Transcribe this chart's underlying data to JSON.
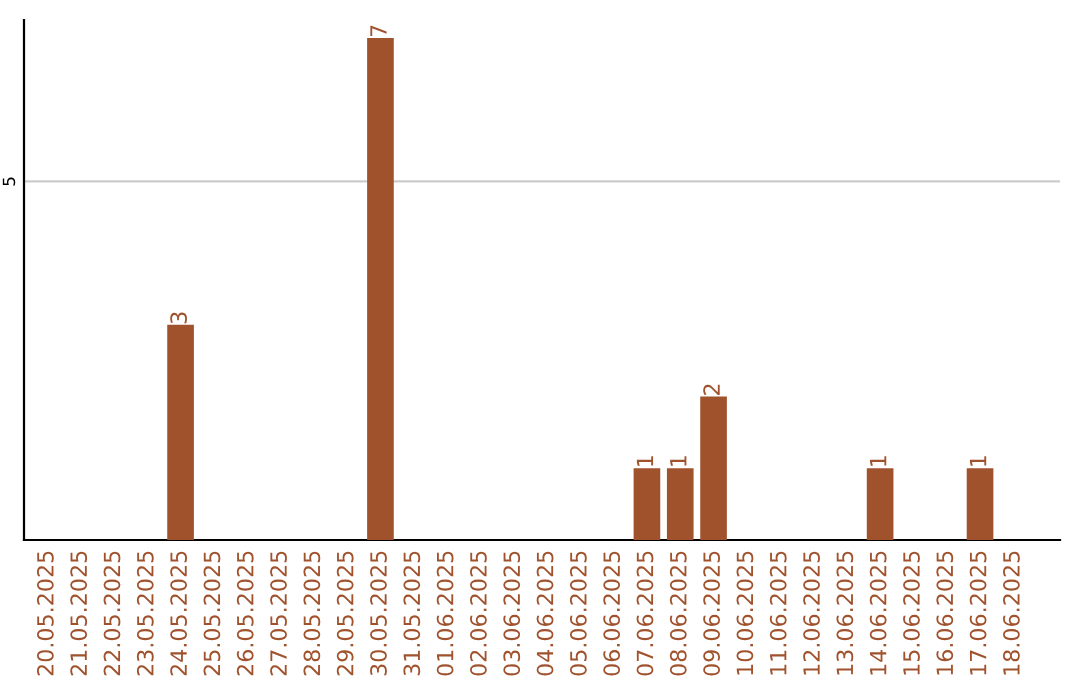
{
  "chart_data": {
    "type": "bar",
    "categories": [
      "20.05.2025",
      "21.05.2025",
      "22.05.2025",
      "23.05.2025",
      "24.05.2025",
      "25.05.2025",
      "26.05.2025",
      "27.05.2025",
      "28.05.2025",
      "29.05.2025",
      "30.05.2025",
      "31.05.2025",
      "01.06.2025",
      "02.06.2025",
      "03.06.2025",
      "04.06.2025",
      "05.06.2025",
      "06.06.2025",
      "07.06.2025",
      "08.06.2025",
      "09.06.2025",
      "10.06.2025",
      "11.06.2025",
      "12.06.2025",
      "13.06.2025",
      "14.06.2025",
      "15.06.2025",
      "16.06.2025",
      "17.06.2025",
      "18.06.2025"
    ],
    "values": [
      0,
      0,
      0,
      0,
      3,
      0,
      0,
      0,
      0,
      0,
      7,
      0,
      0,
      0,
      0,
      0,
      0,
      0,
      1,
      1,
      2,
      0,
      0,
      0,
      0,
      1,
      0,
      0,
      1,
      0
    ],
    "color": "#a0522d",
    "value_labels": [
      null,
      null,
      null,
      null,
      "3",
      null,
      null,
      null,
      null,
      null,
      "7",
      null,
      null,
      null,
      null,
      null,
      null,
      null,
      "1",
      "1",
      "2",
      null,
      null,
      null,
      null,
      "1",
      null,
      null,
      "1",
      null
    ],
    "ylim": [
      0,
      7.25
    ],
    "yticks": [
      5
    ],
    "grid": "y"
  }
}
